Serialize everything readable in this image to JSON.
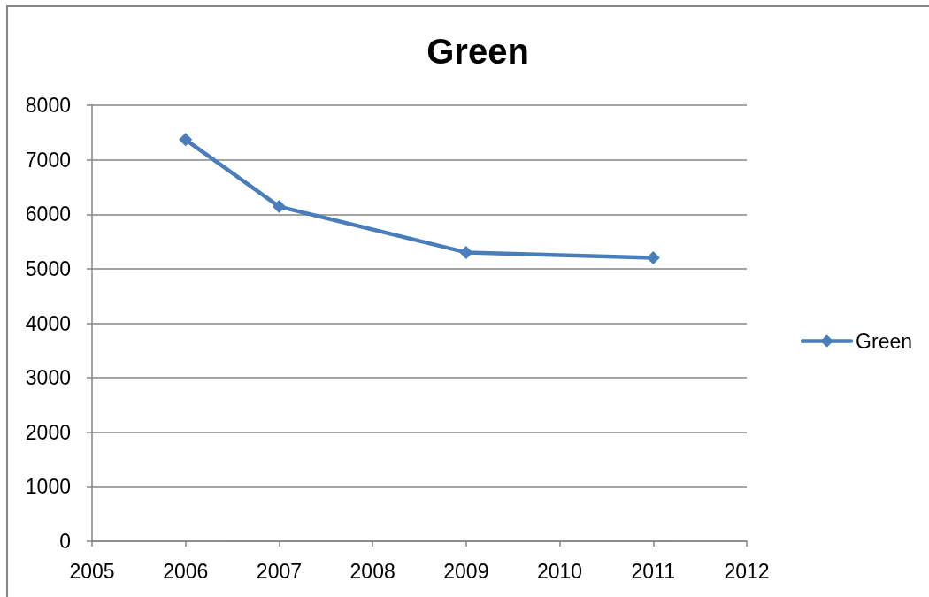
{
  "chart_data": {
    "type": "line",
    "title": "Green",
    "x": [
      2006,
      2007,
      2009,
      2011
    ],
    "series": [
      {
        "name": "Green",
        "color": "#4a7ebb",
        "values": [
          7370,
          6140,
          5300,
          5200
        ]
      }
    ],
    "xlim": [
      2005,
      2012
    ],
    "xticks": [
      2005,
      2006,
      2007,
      2008,
      2009,
      2010,
      2011,
      2012
    ],
    "ylim": [
      0,
      8000
    ],
    "yticks": [
      0,
      1000,
      2000,
      3000,
      4000,
      5000,
      6000,
      7000,
      8000
    ],
    "grid": "y",
    "legend": "right",
    "marker": "diamond",
    "line_style": "solid"
  }
}
